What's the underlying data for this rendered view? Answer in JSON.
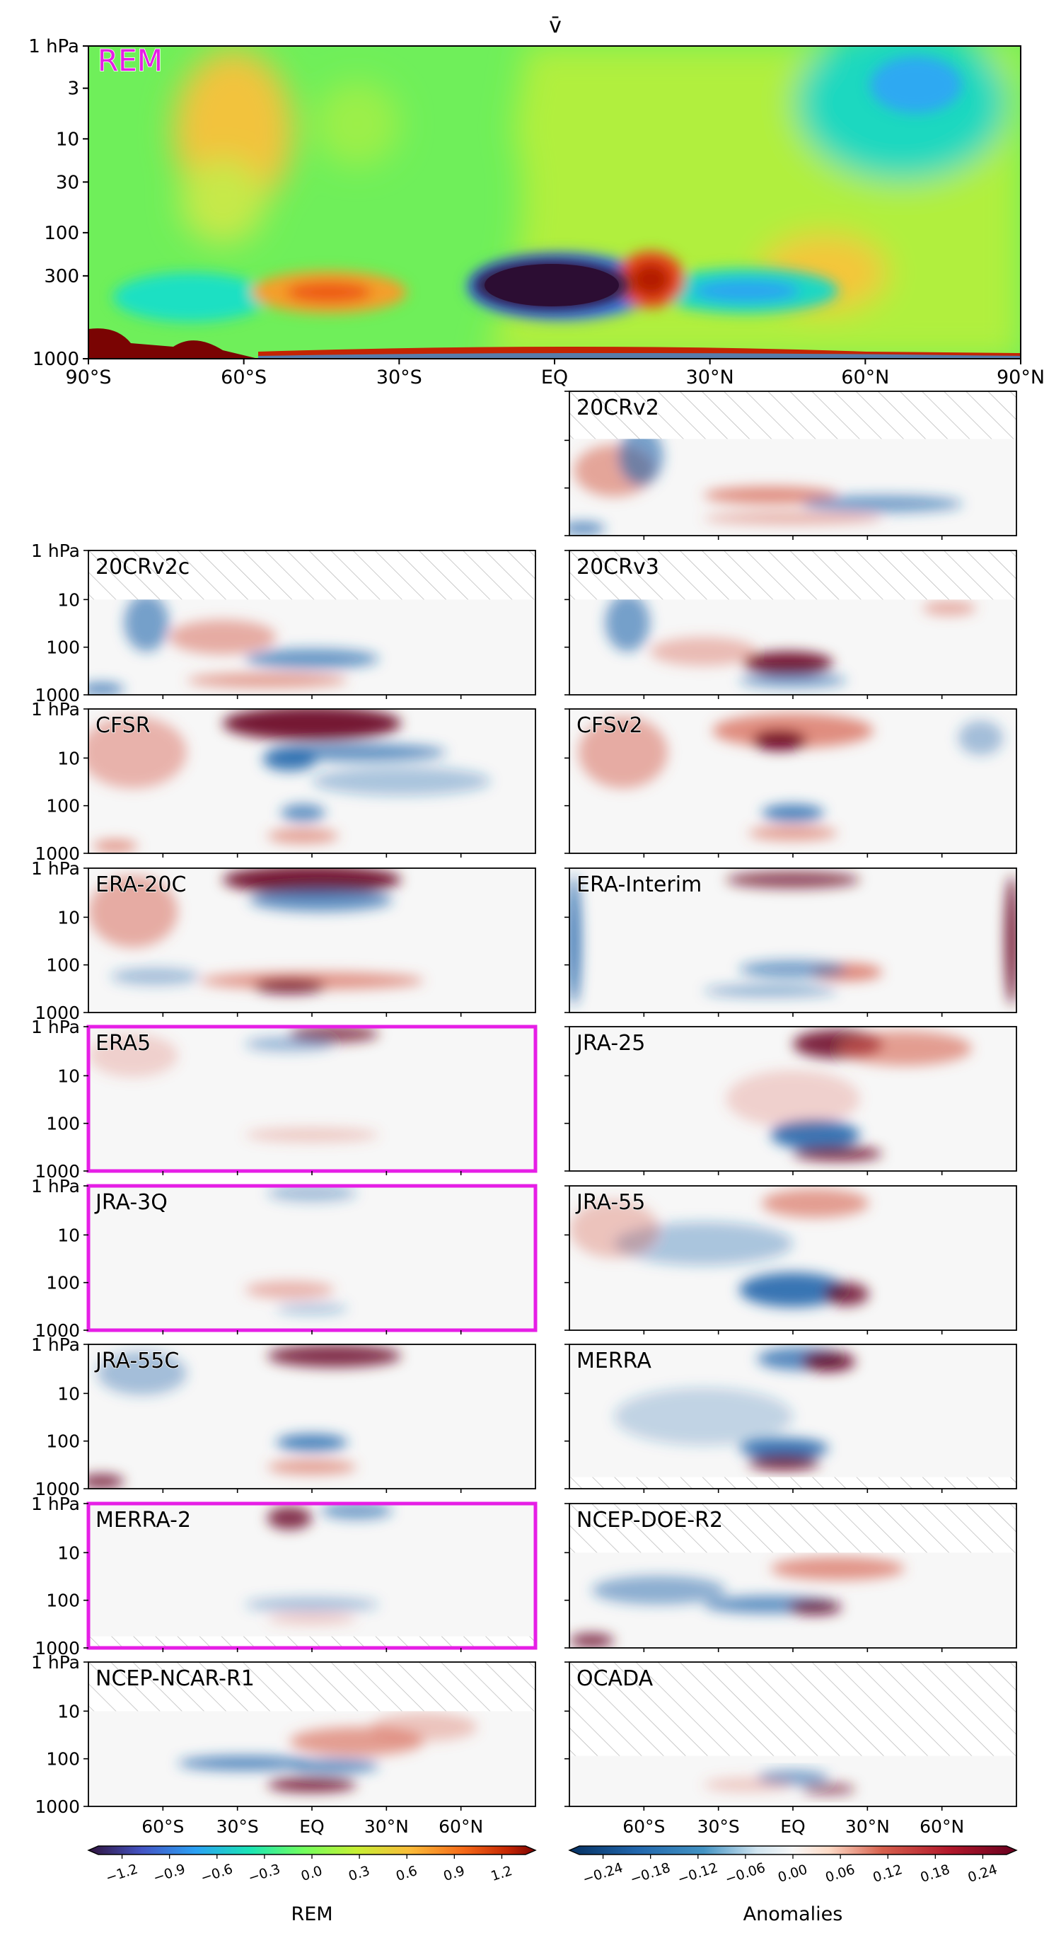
{
  "figure": {
    "title": "v̄",
    "highlight_color": "#e61ee6",
    "contour_note": "Data-derived filled contours; field values read from colour scales"
  },
  "chart_data": {
    "type": "heatmap",
    "top_panel": {
      "label": "REM",
      "label_color": "#e61ee6",
      "x_ticks": [
        "90°S",
        "60°S",
        "30°S",
        "EQ",
        "30°N",
        "60°N",
        "90°N"
      ],
      "y_ticks": [
        "1 hPa",
        "3",
        "10",
        "30",
        "100",
        "300",
        "1000"
      ],
      "colorbar": {
        "label": "REM",
        "colormap": "turbo",
        "ticks": [
          "−1.2",
          "−0.9",
          "−0.6",
          "−0.3",
          "0.0",
          "0.3",
          "0.6",
          "0.9",
          "1.2"
        ],
        "range": [
          -1.2,
          1.2
        ]
      }
    },
    "grid_panels": {
      "x_ticks": [
        "60°S",
        "30°S",
        "EQ",
        "30°N",
        "60°N"
      ],
      "y_ticks": [
        "1 hPa",
        "10",
        "100",
        "1000"
      ],
      "colorbar": {
        "label": "Anomalies",
        "colormap": "RdBu_r",
        "ticks": [
          "−0.24",
          "−0.18",
          "−0.12",
          "−0.06",
          "0.00",
          "0.06",
          "0.12",
          "0.18",
          "0.24"
        ],
        "range": [
          -0.24,
          0.24
        ]
      },
      "panels": [
        {
          "label": "20CRv2",
          "highlight": false
        },
        {
          "label": "20CRv2c",
          "highlight": false
        },
        {
          "label": "20CRv3",
          "highlight": false
        },
        {
          "label": "CFSR",
          "highlight": false
        },
        {
          "label": "CFSv2",
          "highlight": false
        },
        {
          "label": "ERA-20C",
          "highlight": false
        },
        {
          "label": "ERA-Interim",
          "highlight": false
        },
        {
          "label": "ERA5",
          "highlight": true
        },
        {
          "label": "JRA-25",
          "highlight": false
        },
        {
          "label": "JRA-3Q",
          "highlight": true
        },
        {
          "label": "JRA-55",
          "highlight": false
        },
        {
          "label": "JRA-55C",
          "highlight": false
        },
        {
          "label": "MERRA",
          "highlight": false
        },
        {
          "label": "MERRA-2",
          "highlight": true
        },
        {
          "label": "NCEP-DOE-R2",
          "highlight": false
        },
        {
          "label": "NCEP-NCAR-R1",
          "highlight": false
        },
        {
          "label": "OCADA",
          "highlight": false
        }
      ]
    }
  }
}
